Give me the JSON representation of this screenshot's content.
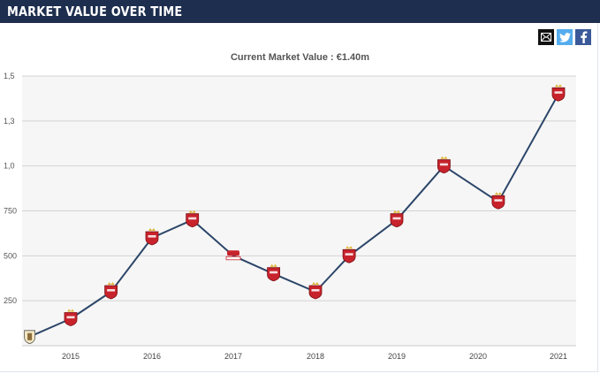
{
  "header": {
    "title": "MARKET VALUE OVER TIME"
  },
  "share": {
    "icons": [
      "email-icon",
      "twitter-icon",
      "facebook-icon"
    ],
    "colors": {
      "email": "#111111",
      "twitter": "#55acee",
      "facebook": "#3b5998"
    }
  },
  "colors": {
    "header_bg": "#1d2e4e",
    "line": "#2c4669",
    "marker": "#c8232c",
    "plot_bg": "#f6f6f6",
    "grid": "#d3d3d3"
  },
  "chart_data": {
    "type": "line",
    "title": "Current Market Value : €1.40m",
    "xlabel": "",
    "ylabel": "",
    "x_ticks": [
      "2015",
      "2016",
      "2017",
      "2018",
      "2019",
      "2020",
      "2021"
    ],
    "y_ticks": [
      "250",
      "500",
      "750",
      "1,0",
      "1,3",
      "1,5"
    ],
    "ylim": [
      0,
      1.5
    ],
    "grid": true,
    "series": [
      {
        "points": [
          {
            "date": "2014-07-01",
            "value": 0.05,
            "club": "previous-club"
          },
          {
            "date": "2015-01-01",
            "value": 0.15,
            "club": "club"
          },
          {
            "date": "2015-07-01",
            "value": 0.3,
            "club": "club"
          },
          {
            "date": "2016-01-01",
            "value": 0.6,
            "club": "club"
          },
          {
            "date": "2016-07-01",
            "value": 0.7,
            "club": "club"
          },
          {
            "date": "2017-01-01",
            "value": 0.5,
            "club": "loan-club"
          },
          {
            "date": "2017-07-01",
            "value": 0.4,
            "club": "club"
          },
          {
            "date": "2018-01-01",
            "value": 0.3,
            "club": "club"
          },
          {
            "date": "2018-06-01",
            "value": 0.5,
            "club": "club"
          },
          {
            "date": "2019-01-01",
            "value": 0.7,
            "club": "club"
          },
          {
            "date": "2019-08-01",
            "value": 1.0,
            "club": "club"
          },
          {
            "date": "2020-04-01",
            "value": 0.8,
            "club": "club"
          },
          {
            "date": "2021-01-01",
            "value": 1.4,
            "club": "club"
          }
        ]
      }
    ]
  }
}
